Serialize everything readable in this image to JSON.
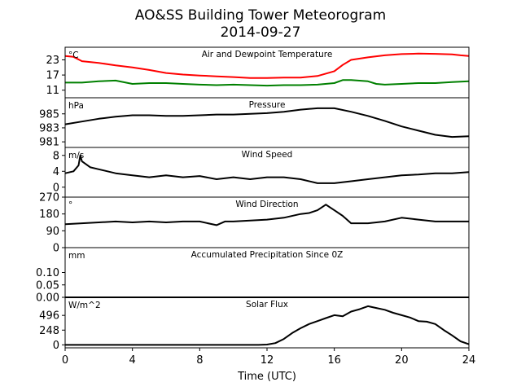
{
  "chart_data": {
    "type": "line",
    "title": "AO&SS Building Tower Meteorogram",
    "subtitle": "2014-09-27",
    "xlabel": "Time (UTC)",
    "xlim": [
      0,
      24
    ],
    "xticks": [
      "0",
      "4",
      "8",
      "12",
      "16",
      "20",
      "24"
    ],
    "panels": [
      {
        "title": "Air and Dewpoint Temperature",
        "unit": "°C",
        "ylim": [
          8,
          28
        ],
        "yticks": [
          "11",
          "17",
          "23"
        ],
        "series": [
          {
            "color": "#ff0000",
            "x": [
              0,
              0.5,
              1,
              2,
              3,
              4,
              5,
              6,
              7,
              8,
              9,
              10,
              11,
              12,
              13,
              14,
              15,
              16,
              16.5,
              17,
              18,
              19,
              20,
              21,
              22,
              23,
              23.5,
              24
            ],
            "y": [
              24.5,
              24.2,
              22.5,
              21.8,
              20.8,
              20.0,
              19.0,
              17.8,
              17.2,
              16.8,
              16.5,
              16.2,
              15.8,
              15.8,
              16.0,
              16.0,
              16.6,
              18.5,
              21.0,
              23.0,
              24.0,
              24.8,
              25.3,
              25.5,
              25.4,
              25.2,
              24.8,
              24.5
            ]
          },
          {
            "color": "#008000",
            "x": [
              0,
              1,
              2,
              3,
              4,
              5,
              6,
              7,
              8,
              9,
              10,
              11,
              12,
              13,
              14,
              15,
              16,
              16.5,
              17,
              18,
              18.5,
              19,
              20,
              21,
              22,
              23,
              24
            ],
            "y": [
              14.0,
              14.0,
              14.5,
              14.8,
              13.5,
              13.8,
              13.8,
              13.5,
              13.2,
              13.0,
              13.2,
              13.0,
              12.8,
              13.0,
              13.0,
              13.2,
              13.8,
              15.0,
              15.0,
              14.5,
              13.5,
              13.2,
              13.5,
              13.8,
              13.8,
              14.2,
              14.5
            ]
          }
        ]
      },
      {
        "title": "Pressure",
        "unit": "hPa",
        "ylim": [
          980.2,
          987.3
        ],
        "yticks": [
          "981",
          "983",
          "985"
        ],
        "series": [
          {
            "color": "#000000",
            "x": [
              0,
              1,
              2,
              3,
              4,
              5,
              6,
              7,
              8,
              9,
              10,
              11,
              12,
              13,
              14,
              15,
              16,
              17,
              18,
              19,
              20,
              21,
              22,
              23,
              24
            ],
            "y": [
              983.5,
              983.9,
              984.3,
              984.6,
              984.8,
              984.8,
              984.7,
              984.7,
              984.8,
              984.9,
              984.9,
              985.0,
              985.1,
              985.3,
              985.6,
              985.8,
              985.8,
              985.3,
              984.7,
              984.0,
              983.2,
              982.6,
              982.0,
              981.7,
              981.8
            ]
          }
        ]
      },
      {
        "title": "Wind Speed",
        "unit": "m/s",
        "ylim": [
          -2.5,
          10
        ],
        "yticks": [
          "0",
          "4",
          "8"
        ],
        "series": [
          {
            "color": "#000000",
            "x": [
              0,
              0.5,
              0.8,
              0.9,
              1.0,
              1.5,
              2,
              3,
              4,
              5,
              6,
              7,
              8,
              9,
              10,
              11,
              12,
              13,
              14,
              15,
              16,
              17,
              18,
              19,
              20,
              21,
              22,
              23,
              24
            ],
            "y": [
              3.5,
              4.0,
              5.5,
              8.0,
              6.5,
              5.0,
              4.5,
              3.5,
              3.0,
              2.5,
              3.0,
              2.5,
              2.8,
              2.0,
              2.5,
              2.0,
              2.5,
              2.5,
              2.0,
              1.0,
              1.0,
              1.5,
              2.0,
              2.5,
              3.0,
              3.2,
              3.5,
              3.5,
              3.8
            ]
          }
        ]
      },
      {
        "title": "Wind Direction",
        "unit": "°",
        "ylim": [
          0,
          270
        ],
        "yticks": [
          "0",
          "90",
          "180",
          "270"
        ],
        "series": [
          {
            "color": "#000000",
            "x": [
              0,
              1,
              2,
              3,
              4,
              5,
              6,
              7,
              8,
              9,
              9.5,
              10,
              11,
              12,
              13,
              14,
              14.5,
              15,
              15.5,
              16,
              16.5,
              17,
              18,
              19,
              20,
              21,
              22,
              23,
              24
            ],
            "y": [
              125,
              130,
              135,
              140,
              135,
              140,
              135,
              140,
              140,
              120,
              140,
              140,
              145,
              150,
              160,
              180,
              185,
              200,
              230,
              200,
              170,
              130,
              130,
              140,
              160,
              150,
              140,
              140,
              140
            ]
          }
        ]
      },
      {
        "title": "Accumulated Precipitation Since 0Z",
        "unit": "mm",
        "ylim": [
          0,
          0.2
        ],
        "yticks": [
          "0.00",
          "0.05",
          "0.10"
        ],
        "series": [
          {
            "color": "#000000",
            "x": [
              0,
              24
            ],
            "y": [
              0,
              0
            ]
          }
        ]
      },
      {
        "title": "Solar Flux",
        "unit": "W/m^2",
        "ylim": [
          -50,
          800
        ],
        "yticks": [
          "0",
          "248",
          "496"
        ],
        "series": [
          {
            "color": "#000000",
            "x": [
              0,
              11.5,
              12,
              12.5,
              13,
              13.5,
              14,
              14.5,
              15,
              15.5,
              16,
              16.5,
              17,
              17.5,
              18,
              18.5,
              19,
              19.5,
              20,
              20.5,
              21,
              21.5,
              22,
              22.5,
              23,
              23.5,
              24
            ],
            "y": [
              0,
              0,
              5,
              30,
              100,
              200,
              280,
              350,
              400,
              450,
              500,
              480,
              560,
              600,
              650,
              620,
              590,
              540,
              500,
              460,
              400,
              390,
              350,
              250,
              160,
              60,
              10
            ]
          }
        ]
      }
    ]
  }
}
